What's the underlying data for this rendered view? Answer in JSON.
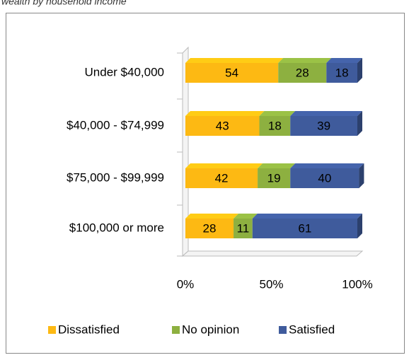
{
  "chart_data": {
    "type": "bar",
    "title": "wealth by household income",
    "categories": [
      "Under $40,000",
      "$40,000 - $74,999",
      "$75,000 - $99,999",
      "$100,000 or more"
    ],
    "series": [
      {
        "name": "Dissatisfied",
        "color": "#FDB913",
        "label_color": "#ffffff",
        "values": [
          54,
          43,
          42,
          28
        ]
      },
      {
        "name": "No opinion",
        "color": "#8DB040",
        "label_color": "#000000",
        "values": [
          28,
          18,
          19,
          11
        ]
      },
      {
        "name": "Satisfied",
        "color": "#3F5B9C",
        "label_color": "#ffffff",
        "values": [
          18,
          39,
          40,
          61
        ]
      }
    ],
    "stacked": true,
    "xlim": [
      0,
      100
    ],
    "xticks": [
      {
        "value": 0,
        "label": "0%"
      },
      {
        "value": 50,
        "label": "50%"
      },
      {
        "value": 100,
        "label": "100%"
      }
    ],
    "legend": "bottom"
  }
}
